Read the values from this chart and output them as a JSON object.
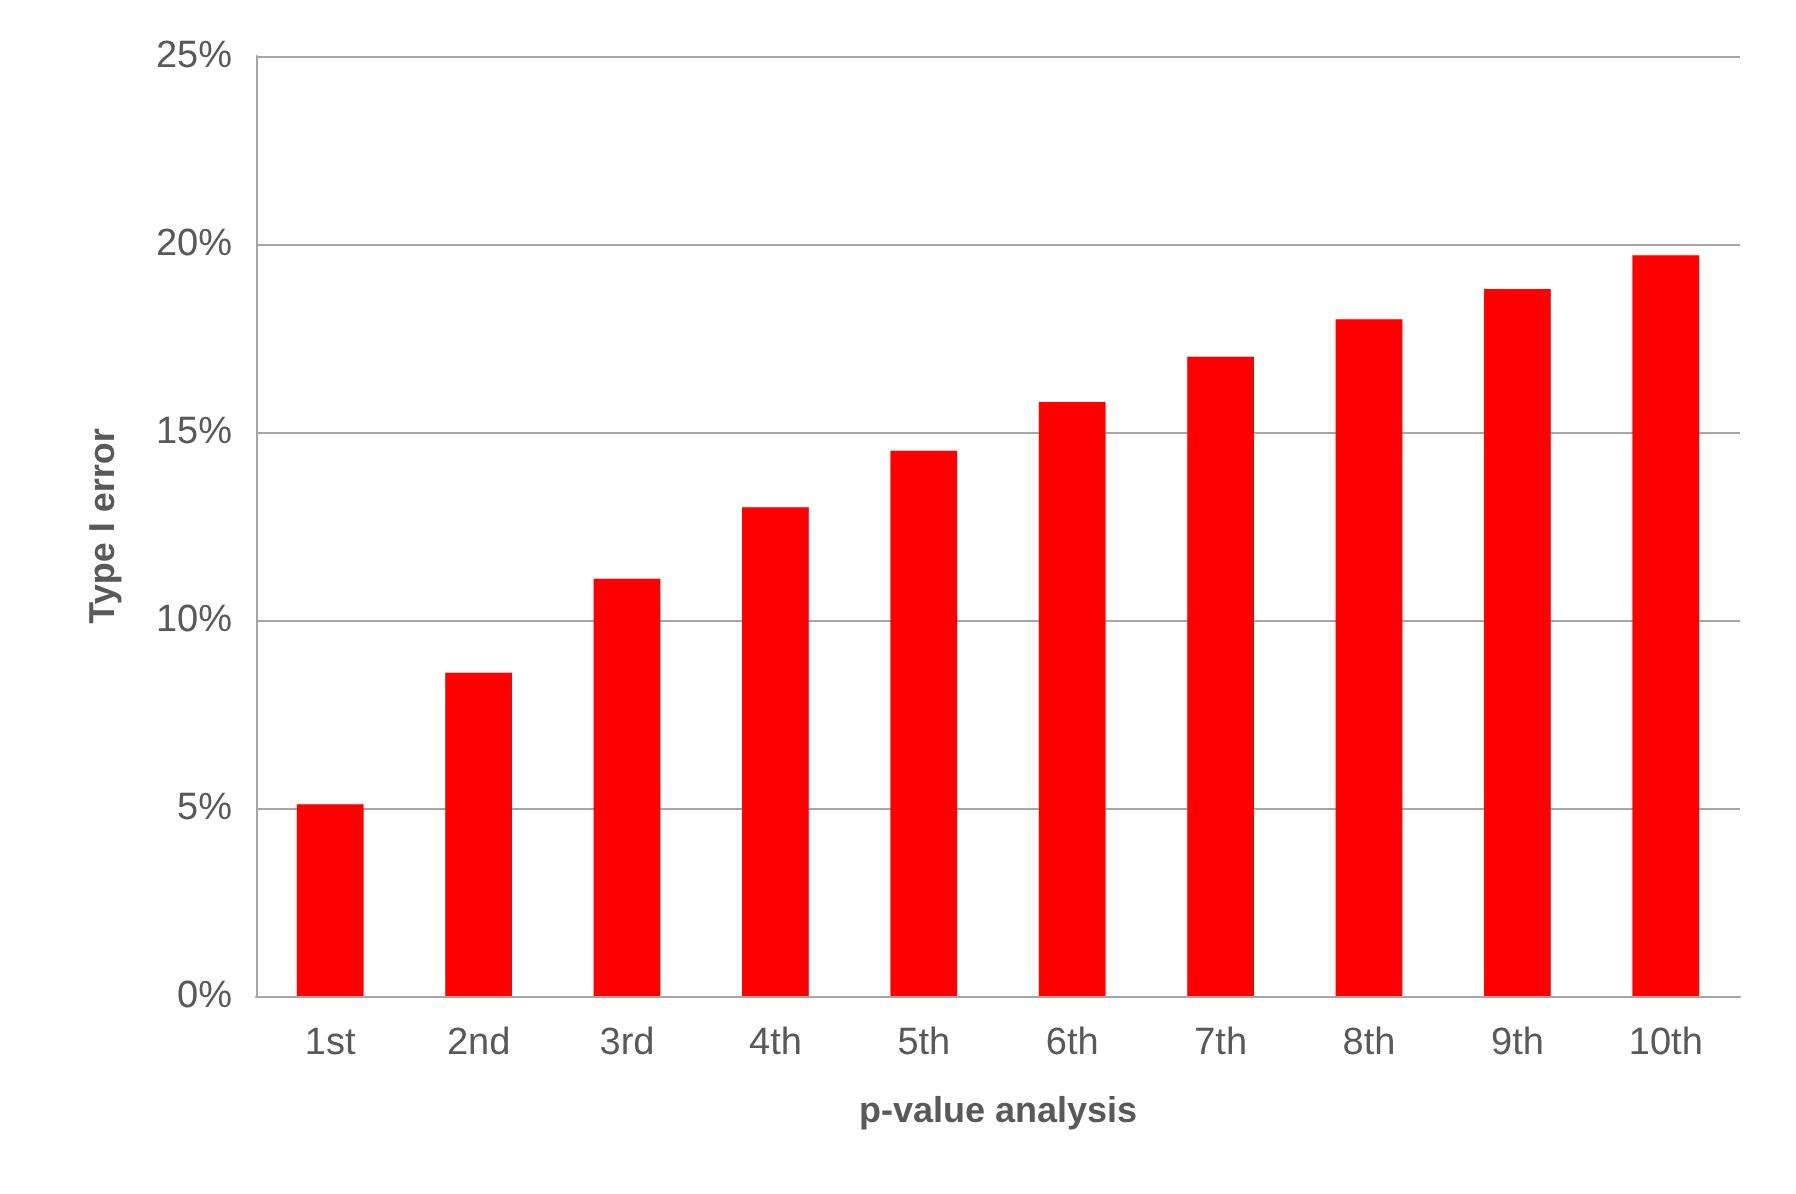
{
  "chart_data": {
    "type": "bar",
    "xlabel": "p-value analysis",
    "ylabel": "Type I error",
    "categories": [
      "1st",
      "2nd",
      "3rd",
      "4th",
      "5th",
      "6th",
      "7th",
      "8th",
      "9th",
      "10th"
    ],
    "values": [
      5.1,
      8.6,
      11.1,
      13.0,
      14.5,
      15.8,
      17.0,
      18.0,
      18.8,
      19.7
    ],
    "color": "#ff0000",
    "ylim": [
      0,
      25
    ],
    "yticks": [
      {
        "value": 0,
        "label": "0%"
      },
      {
        "value": 5,
        "label": "5%"
      },
      {
        "value": 10,
        "label": "10%"
      },
      {
        "value": 15,
        "label": "15%"
      },
      {
        "value": 20,
        "label": "20%"
      },
      {
        "value": 25,
        "label": "25%"
      }
    ],
    "grid": "y"
  }
}
